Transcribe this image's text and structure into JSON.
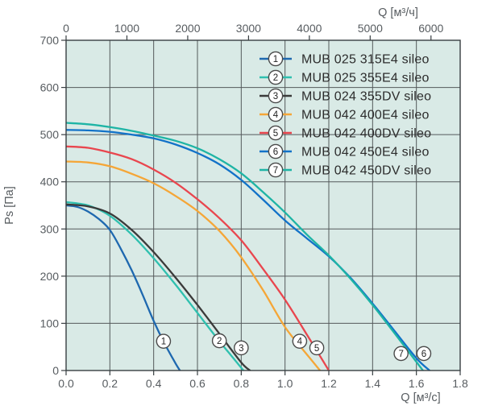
{
  "chart_data": {
    "type": "line",
    "title": "",
    "axes": {
      "top": {
        "label": "Q [м³/ч]",
        "unit": "м³/ч",
        "ticks": [
          0,
          1000,
          2000,
          3000,
          4000,
          5000,
          6000
        ],
        "per_bottom_unit": 3600
      },
      "bottom": {
        "label": "Q [м³/с]",
        "unit": "м³/с",
        "ticks": [
          "0.0",
          "0.2",
          "0.4",
          "0.6",
          "0.8",
          "1.0",
          "1.2",
          "1.4",
          "1.6",
          "1.8"
        ],
        "range": [
          0,
          1.8
        ]
      },
      "left": {
        "label": "Ps [Па]",
        "unit": "Па",
        "ticks": [
          0,
          100,
          200,
          300,
          400,
          500,
          600,
          700
        ],
        "range": [
          0,
          700
        ]
      }
    },
    "grid": {
      "x_step": 0.2,
      "y_step": 100
    },
    "legend_position": "top-right-inside",
    "series": [
      {
        "num": "1",
        "name": "MUB 025 315E4 sileo",
        "color": "#1e68af",
        "marker": {
          "q": 0.445,
          "ps": 62
        },
        "points": [
          [
            0,
            350
          ],
          [
            0.05,
            347
          ],
          [
            0.1,
            337
          ],
          [
            0.15,
            321
          ],
          [
            0.2,
            298
          ],
          [
            0.25,
            258
          ],
          [
            0.3,
            212
          ],
          [
            0.35,
            160
          ],
          [
            0.4,
            105
          ],
          [
            0.45,
            57
          ],
          [
            0.5,
            15
          ],
          [
            0.52,
            0
          ]
        ]
      },
      {
        "num": "2",
        "name": "MUB 025 355E4 sileo",
        "color": "#2fc0af",
        "marker": {
          "q": 0.7,
          "ps": 63
        },
        "points": [
          [
            0,
            357
          ],
          [
            0.1,
            350
          ],
          [
            0.2,
            328
          ],
          [
            0.3,
            288
          ],
          [
            0.4,
            238
          ],
          [
            0.5,
            182
          ],
          [
            0.6,
            122
          ],
          [
            0.7,
            62
          ],
          [
            0.75,
            34
          ],
          [
            0.81,
            0
          ]
        ]
      },
      {
        "num": "3",
        "name": "MUB 024 355DV sileo",
        "color": "#3a3a3a",
        "marker": {
          "q": 0.8,
          "ps": 48
        },
        "points": [
          [
            0,
            352
          ],
          [
            0.1,
            348
          ],
          [
            0.2,
            333
          ],
          [
            0.3,
            298
          ],
          [
            0.4,
            251
          ],
          [
            0.5,
            197
          ],
          [
            0.6,
            139
          ],
          [
            0.7,
            78
          ],
          [
            0.8,
            17
          ],
          [
            0.84,
            0
          ]
        ]
      },
      {
        "num": "4",
        "name": "MUB 042 400E4 sileo",
        "color": "#f5a637",
        "marker": {
          "q": 1.067,
          "ps": 62
        },
        "points": [
          [
            0,
            443
          ],
          [
            0.1,
            441
          ],
          [
            0.2,
            433
          ],
          [
            0.3,
            417
          ],
          [
            0.4,
            397
          ],
          [
            0.5,
            370
          ],
          [
            0.6,
            338
          ],
          [
            0.7,
            296
          ],
          [
            0.8,
            240
          ],
          [
            0.9,
            170
          ],
          [
            1.0,
            92
          ],
          [
            1.1,
            34
          ],
          [
            1.16,
            0
          ]
        ]
      },
      {
        "num": "5",
        "name": "MUB 042 400DV sileo",
        "color": "#e9464e",
        "marker": {
          "q": 1.145,
          "ps": 48
        },
        "points": [
          [
            0,
            475
          ],
          [
            0.1,
            472
          ],
          [
            0.2,
            462
          ],
          [
            0.3,
            448
          ],
          [
            0.4,
            426
          ],
          [
            0.5,
            398
          ],
          [
            0.6,
            363
          ],
          [
            0.7,
            323
          ],
          [
            0.8,
            276
          ],
          [
            0.9,
            215
          ],
          [
            1.0,
            150
          ],
          [
            1.1,
            76
          ],
          [
            1.2,
            0
          ]
        ]
      },
      {
        "num": "6",
        "name": "MUB 042 450E4 sileo",
        "color": "#1272c8",
        "marker": {
          "q": 1.634,
          "ps": 36
        },
        "points": [
          [
            0,
            510
          ],
          [
            0.1,
            509
          ],
          [
            0.2,
            506
          ],
          [
            0.3,
            500
          ],
          [
            0.4,
            492
          ],
          [
            0.5,
            479
          ],
          [
            0.6,
            461
          ],
          [
            0.7,
            437
          ],
          [
            0.8,
            404
          ],
          [
            0.9,
            362
          ],
          [
            1.0,
            318
          ],
          [
            1.1,
            280
          ],
          [
            1.2,
            242
          ],
          [
            1.3,
            196
          ],
          [
            1.4,
            142
          ],
          [
            1.5,
            84
          ],
          [
            1.6,
            26
          ],
          [
            1.66,
            0
          ]
        ]
      },
      {
        "num": "7",
        "name": "MUB 042 450DV sileo",
        "color": "#1eb4a5",
        "marker": {
          "q": 1.53,
          "ps": 36
        },
        "points": [
          [
            0,
            525
          ],
          [
            0.1,
            522
          ],
          [
            0.2,
            516
          ],
          [
            0.3,
            508
          ],
          [
            0.4,
            498
          ],
          [
            0.5,
            487
          ],
          [
            0.6,
            471
          ],
          [
            0.7,
            448
          ],
          [
            0.8,
            418
          ],
          [
            0.9,
            378
          ],
          [
            1.0,
            335
          ],
          [
            1.1,
            288
          ],
          [
            1.2,
            244
          ],
          [
            1.3,
            194
          ],
          [
            1.4,
            139
          ],
          [
            1.5,
            79
          ],
          [
            1.63,
            0
          ]
        ]
      }
    ]
  },
  "colors": {
    "page_bg": "#ffffff",
    "plot_bg": "#d9eae6",
    "grid": "#54595b",
    "frame": "#383f42",
    "tick_text": "#575c60",
    "legend_text": "#2c2c2c",
    "marker_ring": "#4a4a4a",
    "marker_fill": "#ffffff",
    "marker_text": "#222222"
  }
}
